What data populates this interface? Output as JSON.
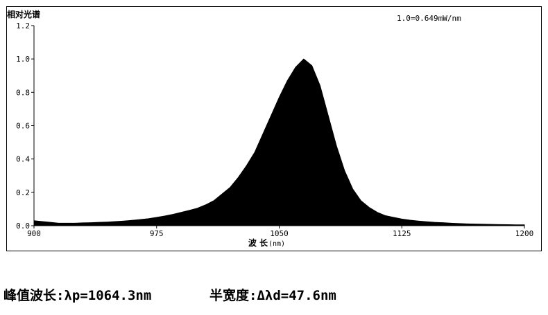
{
  "chart_data": {
    "type": "area",
    "ylabel": "相对光谱",
    "xlabel": "波 长",
    "xlabel_unit": "(nm)",
    "annotation": "1.0=0.649mW/nm",
    "x": [
      900,
      905,
      910,
      915,
      920,
      925,
      930,
      935,
      940,
      945,
      950,
      955,
      960,
      965,
      970,
      975,
      980,
      985,
      990,
      995,
      1000,
      1005,
      1010,
      1015,
      1020,
      1025,
      1030,
      1035,
      1040,
      1045,
      1050,
      1055,
      1060,
      1065,
      1070,
      1075,
      1080,
      1085,
      1090,
      1095,
      1100,
      1105,
      1110,
      1115,
      1120,
      1125,
      1130,
      1135,
      1140,
      1145,
      1150,
      1155,
      1160,
      1165,
      1170,
      1175,
      1180,
      1185,
      1190,
      1195,
      1200
    ],
    "values": [
      0.03,
      0.025,
      0.02,
      0.015,
      0.015,
      0.015,
      0.017,
      0.018,
      0.02,
      0.022,
      0.025,
      0.028,
      0.032,
      0.037,
      0.042,
      0.05,
      0.058,
      0.068,
      0.08,
      0.092,
      0.105,
      0.125,
      0.15,
      0.19,
      0.23,
      0.29,
      0.36,
      0.44,
      0.55,
      0.66,
      0.77,
      0.87,
      0.95,
      1.0,
      0.96,
      0.84,
      0.66,
      0.48,
      0.33,
      0.22,
      0.15,
      0.11,
      0.08,
      0.06,
      0.05,
      0.04,
      0.033,
      0.028,
      0.024,
      0.02,
      0.018,
      0.015,
      0.013,
      0.011,
      0.01,
      0.009,
      0.008,
      0.007,
      0.006,
      0.005,
      0.005
    ],
    "color": "#000000",
    "xlim": [
      900,
      1200
    ],
    "xticks": [
      900,
      975,
      1050,
      1125,
      1200
    ],
    "ylim": [
      0,
      1.2
    ],
    "yticks": [
      {
        "value": 0,
        "label": "0.0"
      },
      0.2,
      0.4,
      0.6,
      0.8,
      {
        "value": 1,
        "label": "1.0"
      },
      1.2
    ],
    "footer": [
      "峰值波长:λp=1064.3nm",
      "半宽度:Δλd=47.6nm"
    ]
  }
}
